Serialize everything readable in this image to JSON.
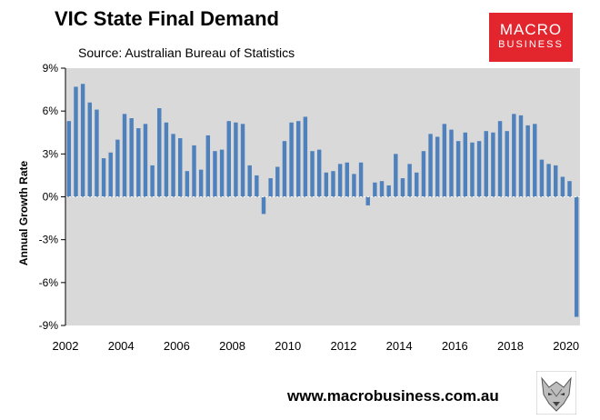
{
  "header": {
    "title": "VIC State Final Demand",
    "subtitle": "Source: Australian Bureau of Statistics"
  },
  "logo": {
    "line1": "MACRO",
    "line2": "BUSINESS",
    "color": "#e3262e"
  },
  "footer": {
    "url": "www.macrobusiness.com.au",
    "mascot_icon": "wolf-icon"
  },
  "chart_data": {
    "type": "bar",
    "title": "VIC State Final Demand",
    "ylabel": "Annual Growth Rate",
    "xlabel": "",
    "ylim": [
      -9,
      9
    ],
    "yticks": [
      -9,
      -6,
      -3,
      0,
      3,
      6,
      9
    ],
    "ytick_labels": [
      "-9%",
      "-6%",
      "-3%",
      "0%",
      "3%",
      "6%",
      "9%"
    ],
    "xlim": [
      2002,
      2020.5
    ],
    "xticks": [
      2002,
      2004,
      2006,
      2008,
      2010,
      2012,
      2014,
      2016,
      2018,
      2020
    ],
    "xtick_labels": [
      "2002",
      "2004",
      "2006",
      "2008",
      "2010",
      "2012",
      "2014",
      "2016",
      "2018",
      "2020"
    ],
    "grid": false,
    "background": "#d9d9d9",
    "bar_color": "#4f81bd",
    "x_start": "2002-Q1",
    "frequency": "quarterly",
    "values": [
      5.3,
      7.7,
      7.9,
      6.6,
      6.1,
      2.7,
      3.1,
      4.0,
      5.8,
      5.5,
      4.8,
      5.1,
      2.2,
      6.2,
      5.2,
      4.4,
      4.1,
      1.8,
      3.6,
      1.9,
      4.3,
      3.2,
      3.3,
      5.3,
      5.2,
      5.1,
      2.2,
      1.5,
      -1.2,
      1.3,
      2.1,
      3.9,
      5.2,
      5.3,
      5.6,
      3.2,
      3.3,
      1.7,
      1.8,
      2.3,
      2.4,
      1.6,
      2.4,
      -0.6,
      1.0,
      1.1,
      0.8,
      3.0,
      1.3,
      2.3,
      1.7,
      3.2,
      4.4,
      4.2,
      5.1,
      4.7,
      3.9,
      4.5,
      3.8,
      3.9,
      4.6,
      4.5,
      5.3,
      4.6,
      5.8,
      5.7,
      5.0,
      5.1,
      2.6,
      2.3,
      2.2,
      1.4,
      1.1,
      -8.4
    ]
  }
}
